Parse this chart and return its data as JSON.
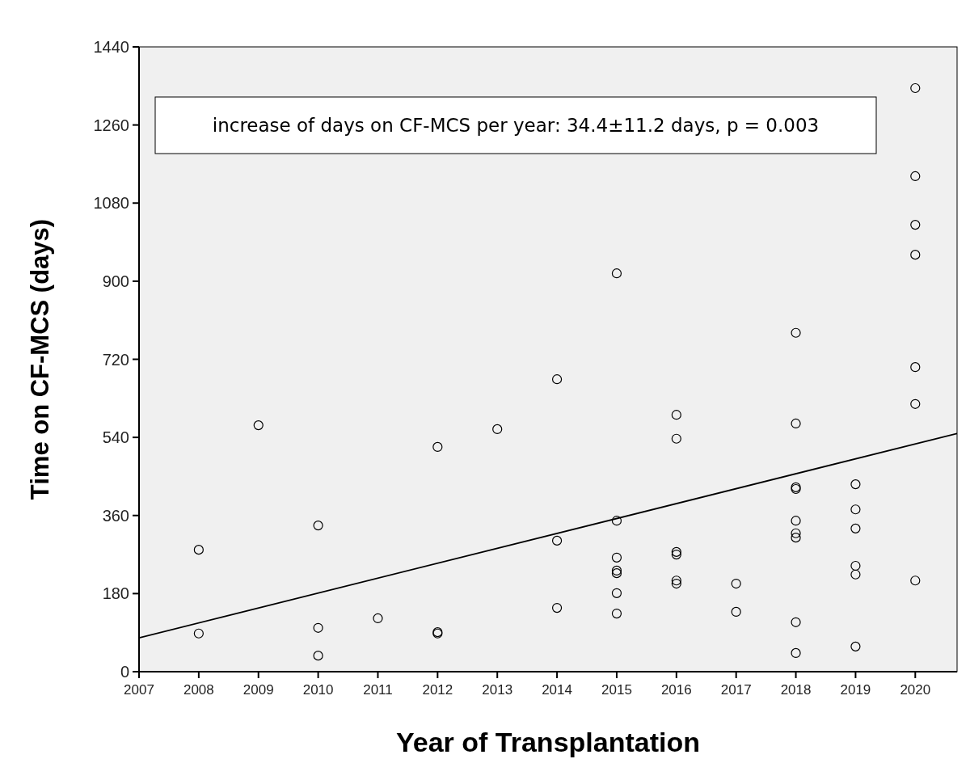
{
  "chart_data": {
    "type": "scatter",
    "xlabel": "Year of Transplantation",
    "ylabel": "Time on CF-MCS (days)",
    "xlim": [
      2007,
      2020.7
    ],
    "xticks": [
      2007,
      2008,
      2009,
      2010,
      2011,
      2012,
      2013,
      2014,
      2015,
      2016,
      2017,
      2018,
      2019,
      2020
    ],
    "ylim": [
      0,
      1440
    ],
    "yticks": [
      0,
      180,
      360,
      540,
      720,
      900,
      1080,
      1260,
      1440
    ],
    "grid": false,
    "marker": "circle",
    "annotations": [
      "increase of days on CF-MCS per year: 34.4±11.2 days, p = 0.003"
    ],
    "series": [
      {
        "color": "#000000",
        "x": [
          2008,
          2008,
          2009,
          2010,
          2010,
          2010,
          2011,
          2012,
          2012,
          2012,
          2013,
          2014,
          2014,
          2014,
          2015,
          2015,
          2015,
          2015,
          2015,
          2015,
          2015,
          2016,
          2016,
          2016,
          2016,
          2016,
          2016,
          2017,
          2017,
          2018,
          2018,
          2018,
          2018,
          2018,
          2018,
          2018,
          2018,
          2018,
          2019,
          2019,
          2019,
          2019,
          2019,
          2019,
          2020,
          2020,
          2020,
          2020,
          2020,
          2020,
          2020
        ],
        "values": [
          281,
          88,
          568,
          337,
          101,
          37,
          123,
          518,
          91,
          88,
          559,
          674,
          302,
          147,
          918,
          348,
          263,
          233,
          227,
          181,
          134,
          592,
          537,
          276,
          270,
          210,
          203,
          203,
          138,
          781,
          572,
          425,
          421,
          348,
          319,
          309,
          114,
          43,
          432,
          374,
          330,
          244,
          224,
          58,
          1345,
          1142,
          1030,
          961,
          702,
          617,
          210
        ]
      },
      {
        "type": "line",
        "marker": "none",
        "color": "#000000",
        "x": [
          2007,
          2020.7
        ],
        "values": [
          78,
          549
        ]
      }
    ]
  }
}
